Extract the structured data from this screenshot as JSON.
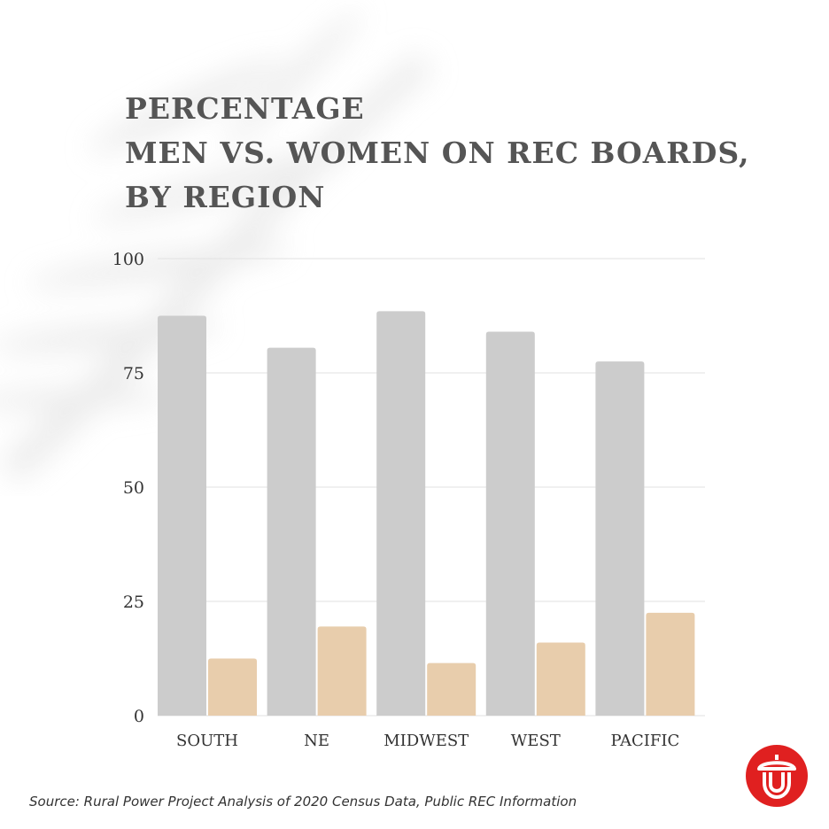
{
  "title_lines": [
    "PERCENTAGE",
    "MEN VS. WOMEN ON REC BOARDS,",
    "BY REGION"
  ],
  "source": "Source: Rural Power Project Analysis of 2020 Census Data, Public REC Information",
  "logo_icon": "acorn-icon",
  "colors": {
    "men": "#cccccc",
    "women": "#e8cdac",
    "grid": "#e2e2e2",
    "text": "#333333",
    "title": "#555555",
    "logo": "#e02020"
  },
  "chart_data": {
    "type": "bar",
    "title": "PERCENTAGE MEN VS. WOMEN ON REC BOARDS, BY REGION",
    "categories": [
      "SOUTH",
      "NE",
      "MIDWEST",
      "WEST",
      "PACIFIC"
    ],
    "series": [
      {
        "values": [
          87.5,
          80.5,
          88.5,
          84,
          77.5
        ]
      },
      {
        "values": [
          12.5,
          19.5,
          11.5,
          16,
          22.5
        ]
      }
    ],
    "ylim": [
      0,
      100
    ],
    "yticks": [
      0,
      25,
      50,
      75,
      100
    ],
    "grid": true,
    "xlabel": "",
    "ylabel": ""
  }
}
